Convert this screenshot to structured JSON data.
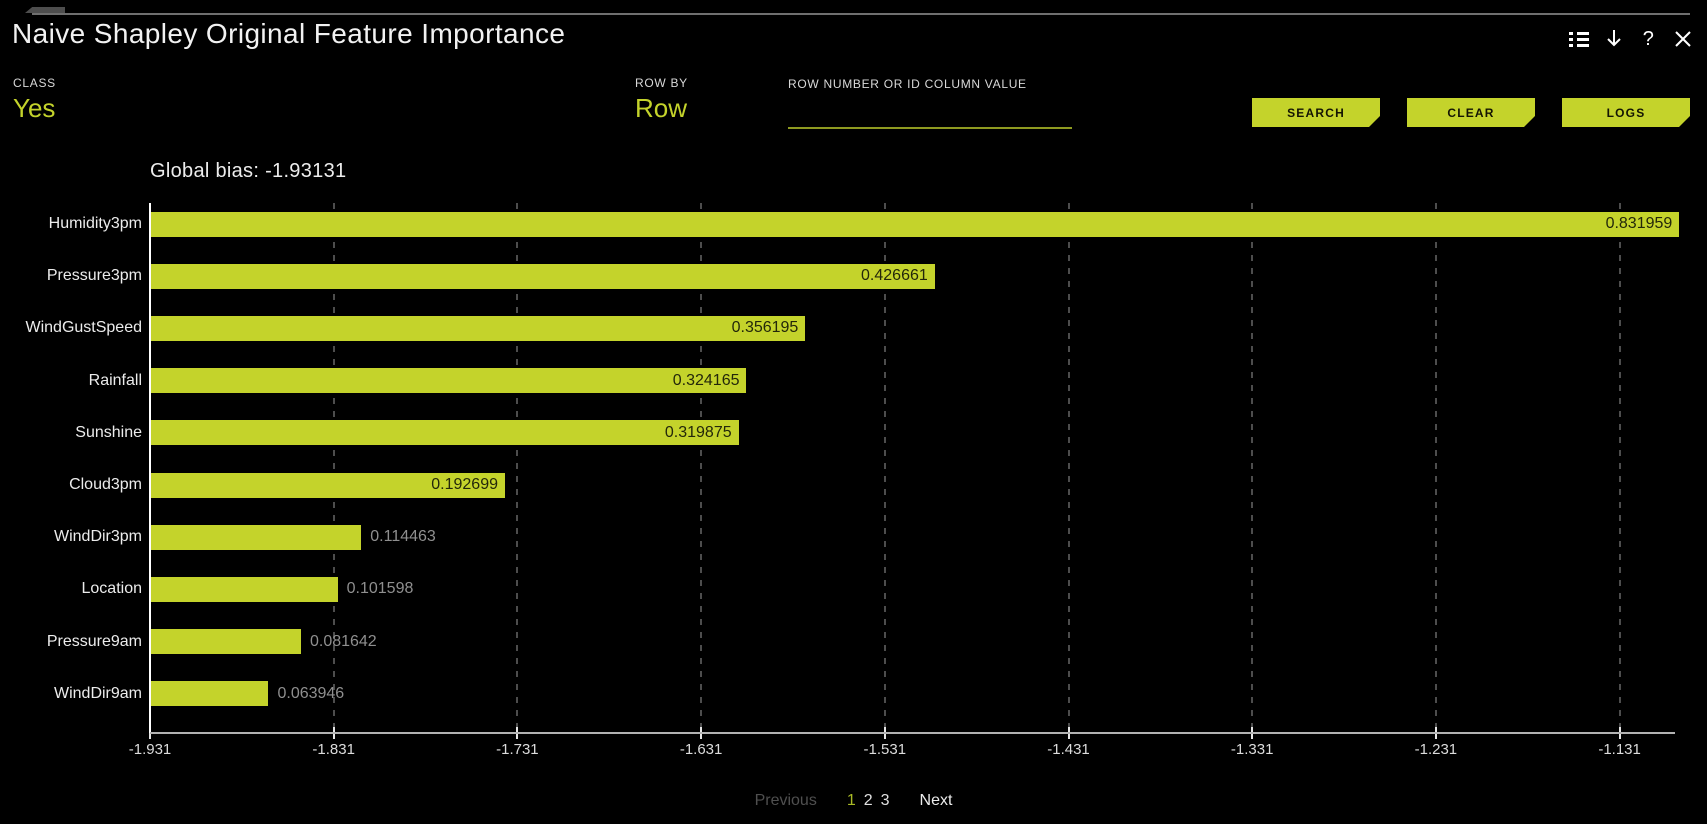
{
  "header": {
    "title": "Naive Shapley Original Feature Importance",
    "icons": [
      "list-options",
      "download",
      "help",
      "close"
    ]
  },
  "controls": {
    "class_label": "CLASS",
    "class_value": "Yes",
    "row_by_label": "ROW BY",
    "row_by_value": "Row",
    "row_input_label": "ROW NUMBER OR ID COLUMN VALUE",
    "row_input_value": "",
    "buttons": [
      "SEARCH",
      "CLEAR",
      "LOGS"
    ]
  },
  "chart_data": {
    "type": "bar",
    "orientation": "horizontal",
    "title": "Global bias: -1.93131",
    "global_bias": -1.93131,
    "categories": [
      "Humidity3pm",
      "Pressure3pm",
      "WindGustSpeed",
      "Rainfall",
      "Sunshine",
      "Cloud3pm",
      "WindDir3pm",
      "Location",
      "Pressure9am",
      "WindDir9am"
    ],
    "values": [
      0.831959,
      0.426661,
      0.356195,
      0.324165,
      0.319875,
      0.192699,
      0.114463,
      0.101598,
      0.081642,
      0.063946
    ],
    "value_labels": [
      "0.831959",
      "0.426661",
      "0.356195",
      "0.324165",
      "0.319875",
      "0.192699",
      "0.114463",
      "0.101598",
      "0.081642",
      "0.063946"
    ],
    "x_tick_labels": [
      "-1.931",
      "-1.831",
      "-1.731",
      "-1.631",
      "-1.531",
      "-1.431",
      "-1.331",
      "-1.231",
      "-1.131"
    ],
    "x_axis_start": -1.931,
    "x_tick_step": 0.1,
    "grid": true,
    "legend": false
  },
  "pagination": {
    "previous_label": "Previous",
    "pages": [
      "1",
      "2",
      "3"
    ],
    "current_page": "1",
    "next_label": "Next"
  },
  "colors": {
    "accent": "#c4d32b",
    "background": "#000000",
    "value_inside_text": "#23270a",
    "value_outside_text": "#8f8f8f",
    "axis_line": "#b2b2b2",
    "gridline": "#4d4d4d",
    "disabled_text": "#4f4f4f",
    "current_page_text": "#a9ba26"
  }
}
